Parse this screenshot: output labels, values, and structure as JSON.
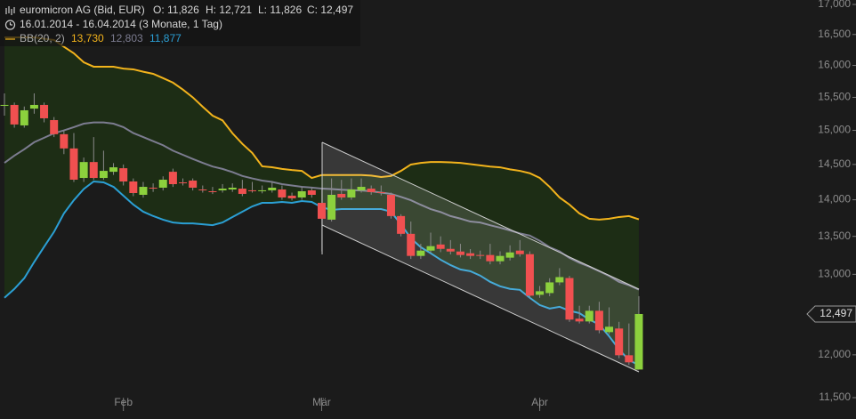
{
  "chart_data": {
    "type": "candlestick",
    "title": "euromicron AG (Bid, EUR)",
    "ohlc_labels": [
      "O: 11,826",
      "H: 12,721",
      "L: 11,826",
      "C: 12,497"
    ],
    "subtitle": "16.01.2014 - 16.04.2014 (3 Monate, 1 Tag)",
    "log_scale": true,
    "up_color": "#8cd13d",
    "down_color": "#f05050",
    "wick_color": "#8a8a8a",
    "band_fill": "#1d2d15",
    "ylim": [
      11500,
      17000
    ],
    "yticks": [
      {
        "value": 11500,
        "label": "11,500"
      },
      {
        "value": 12000,
        "label": "12,000"
      },
      {
        "value": 13000,
        "label": "13,000"
      },
      {
        "value": 13500,
        "label": "13,500"
      },
      {
        "value": 14000,
        "label": "14,000"
      },
      {
        "value": 14500,
        "label": "14,500"
      },
      {
        "value": 15000,
        "label": "15,000"
      },
      {
        "value": 15500,
        "label": "15,500"
      },
      {
        "value": 16000,
        "label": "16,000"
      },
      {
        "value": 16500,
        "label": "16,500"
      },
      {
        "value": 17000,
        "label": "17,000"
      }
    ],
    "last_price_label": "12,497",
    "categories": [
      null,
      null,
      null,
      null,
      null,
      null,
      null,
      null,
      null,
      null,
      null,
      null,
      "Feb",
      null,
      null,
      null,
      null,
      null,
      null,
      null,
      null,
      null,
      null,
      null,
      null,
      null,
      null,
      null,
      null,
      null,
      null,
      null,
      "Mär",
      null,
      null,
      null,
      null,
      null,
      null,
      null,
      null,
      null,
      null,
      null,
      null,
      null,
      null,
      null,
      null,
      null,
      null,
      null,
      null,
      null,
      "Apr",
      null,
      null,
      null,
      null,
      null,
      null,
      null,
      null,
      null,
      null
    ],
    "open": [
      15384,
      15384,
      15074,
      15328,
      15384,
      15154,
      14943,
      14733,
      14307,
      14535,
      14307,
      14395,
      14446,
      14257,
      14069,
      14169,
      14169,
      14395,
      14244,
      14270,
      14144,
      14119,
      14132,
      14144,
      14156,
      14132,
      14125,
      14132,
      14144,
      14057,
      14032,
      14132,
      13957,
      13726,
      14082,
      14032,
      14132,
      14156,
      14107,
      14069,
      13775,
      13534,
      13240,
      13310,
      13391,
      13333,
      13298,
      13275,
      13252,
      13252,
      13170,
      13217,
      13310,
      13263,
      12738,
      12760,
      12896,
      12952,
      12439,
      12405,
      12537,
      12274,
      12318,
      11995,
      11826
    ],
    "high": [
      15562,
      15420,
      15360,
      15562,
      15420,
      15200,
      15000,
      14960,
      14600,
      14900,
      14700,
      14520,
      14500,
      14300,
      14250,
      14230,
      14330,
      14440,
      14300,
      14300,
      14200,
      14180,
      14220,
      14230,
      14280,
      14250,
      14200,
      14260,
      14200,
      14100,
      14180,
      14170,
      14150,
      14300,
      14280,
      14300,
      14300,
      14200,
      14200,
      14100,
      13800,
      13700,
      13400,
      13550,
      13500,
      13450,
      13400,
      13330,
      13310,
      13400,
      13300,
      13380,
      13450,
      13300,
      12850,
      12950,
      13080,
      12980,
      12600,
      12600,
      12650,
      12580,
      12400,
      12380,
      12721
    ],
    "low": [
      15221,
      15040,
      15040,
      15250,
      15120,
      14900,
      14650,
      14250,
      14250,
      14280,
      14280,
      14350,
      14200,
      14050,
      14030,
      14110,
      14130,
      14180,
      14200,
      14130,
      14100,
      14080,
      14100,
      14110,
      14050,
      14100,
      14090,
      14100,
      14000,
      13990,
      14000,
      14030,
      13300,
      13700,
      14000,
      14000,
      14100,
      14070,
      14060,
      13740,
      13500,
      13200,
      13200,
      13280,
      13290,
      13260,
      13220,
      13200,
      13200,
      13130,
      13130,
      13180,
      13230,
      12700,
      12700,
      12720,
      12860,
      12400,
      12380,
      12380,
      12260,
      12250,
      11960,
      11880,
      11826
    ],
    "close": [
      15384,
      15088,
      15302,
      15384,
      15181,
      14943,
      14733,
      14282,
      14535,
      14307,
      14408,
      14459,
      14257,
      14094,
      14181,
      14160,
      14282,
      14219,
      14235,
      14169,
      14135,
      14110,
      14156,
      14169,
      14082,
      14125,
      14132,
      14169,
      14032,
      14020,
      14119,
      14069,
      13738,
      14069,
      14032,
      14144,
      14181,
      14107,
      14100,
      13775,
      13534,
      13240,
      13310,
      13369,
      13333,
      13298,
      13252,
      13240,
      13245,
      13170,
      13240,
      13286,
      13263,
      12727,
      12783,
      12896,
      12964,
      12428,
      12405,
      12537,
      12296,
      12340,
      11995,
      11911,
      12497
    ],
    "indicator": {
      "name": "BB(20, 2)",
      "bands": [
        {
          "color": "#f2b31c",
          "value_label": "13,730",
          "values": [
            16453,
            16453,
            16453,
            16453,
            16430,
            16410,
            16300,
            16194,
            16050,
            15980,
            15980,
            15980,
            15950,
            15938,
            15900,
            15867,
            15800,
            15729,
            15620,
            15500,
            15356,
            15221,
            15150,
            14957,
            14800,
            14667,
            14473,
            14460,
            14436,
            14420,
            14408,
            14307,
            14348,
            14348,
            14348,
            14348,
            14348,
            14340,
            14320,
            14335,
            14408,
            14499,
            14523,
            14535,
            14535,
            14530,
            14523,
            14505,
            14487,
            14470,
            14459,
            14430,
            14408,
            14374,
            14307,
            14181,
            14032,
            13933,
            13811,
            13738,
            13726,
            13738,
            13762,
            13775,
            13730
          ]
        },
        {
          "color": "#7c7c90",
          "value_label": "12,803",
          "values": [
            14523,
            14628,
            14720,
            14824,
            14890,
            14957,
            15000,
            15048,
            15100,
            15118,
            15118,
            15100,
            15048,
            14960,
            14900,
            14840,
            14780,
            14700,
            14640,
            14580,
            14523,
            14470,
            14436,
            14390,
            14335,
            14300,
            14270,
            14250,
            14219,
            14200,
            14181,
            14170,
            14156,
            14150,
            14140,
            14135,
            14130,
            14119,
            14100,
            14082,
            14040,
            13994,
            13930,
            13871,
            13830,
            13775,
            13740,
            13700,
            13687,
            13650,
            13617,
            13580,
            13540,
            13510,
            13440,
            13355,
            13300,
            13214,
            13150,
            13100,
            13040,
            12980,
            12903,
            12860,
            12803
          ]
        },
        {
          "color": "#2b9fd4",
          "value_label": "11,877",
          "values": [
            12700,
            12813,
            12950,
            13160,
            13360,
            13560,
            13811,
            13994,
            14150,
            14257,
            14244,
            14181,
            14057,
            13933,
            13835,
            13775,
            13726,
            13687,
            13675,
            13675,
            13663,
            13651,
            13687,
            13762,
            13835,
            13908,
            13957,
            13957,
            13970,
            13957,
            13982,
            13970,
            13896,
            13859,
            13871,
            13871,
            13871,
            13871,
            13871,
            13835,
            13663,
            13474,
            13355,
            13275,
            13190,
            13120,
            13063,
            13040,
            12983,
            12903,
            12846,
            12813,
            12801,
            12700,
            12609,
            12565,
            12587,
            12537,
            12509,
            12428,
            12368,
            12224,
            12065,
            11938,
            11877
          ]
        }
      ]
    }
  }
}
